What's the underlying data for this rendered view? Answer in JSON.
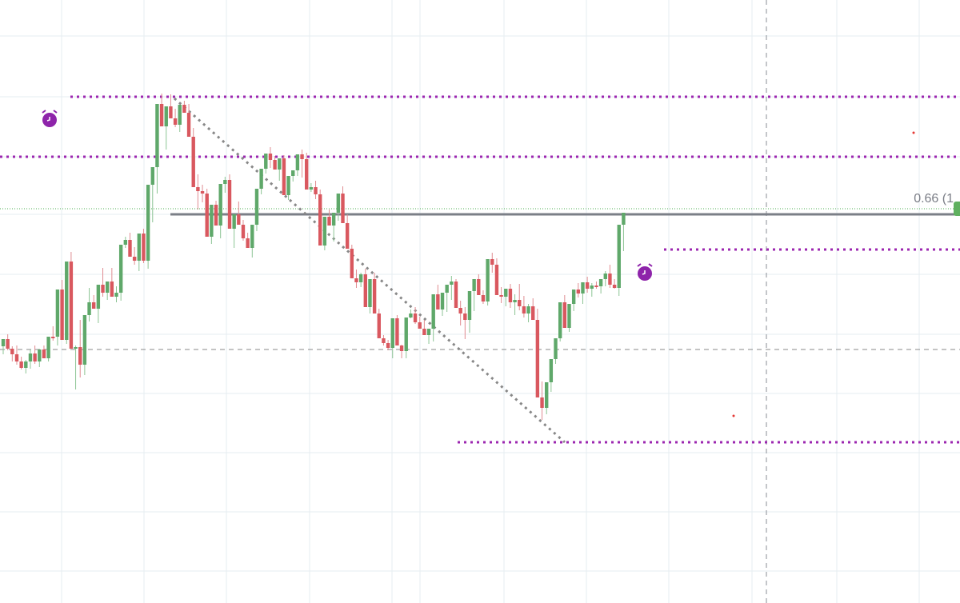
{
  "chart_data": {
    "type": "candlestick",
    "colors": {
      "up": "#5fa86a",
      "down": "#d9585f",
      "wick_up": "#8cc494",
      "wick_down": "#e08c91",
      "grid": "#e6ecf1",
      "level": "#9c27b0",
      "trend": "#888888",
      "hline": "#7b7f87",
      "crosshair": "#8a8e96",
      "dashed_ref": "#888888",
      "price_dots": "#4caf50",
      "alarm": "#8e24aa"
    },
    "ohlc": [
      [
        433,
        443,
        424,
        424
      ],
      [
        424,
        438,
        418,
        436
      ],
      [
        436,
        452,
        433,
        443
      ],
      [
        443,
        456,
        432,
        452
      ],
      [
        452,
        462,
        446,
        460
      ],
      [
        460,
        467,
        450,
        452
      ],
      [
        452,
        461,
        437,
        442
      ],
      [
        442,
        455,
        432,
        452
      ],
      [
        452,
        459,
        438,
        437
      ],
      [
        437,
        448,
        432,
        448
      ],
      [
        448,
        452,
        430,
        421
      ],
      [
        421,
        426,
        408,
        421
      ],
      [
        421,
        432,
        410,
        362
      ],
      [
        362,
        371,
        350,
        425
      ],
      [
        425,
        430,
        405,
        327
      ],
      [
        327,
        346,
        315,
        436
      ],
      [
        436,
        487,
        432,
        434
      ],
      [
        434,
        472,
        400,
        456
      ],
      [
        456,
        469,
        444,
        394
      ],
      [
        394,
        402,
        360,
        378
      ],
      [
        378,
        382,
        369,
        386
      ],
      [
        386,
        404,
        376,
        356
      ],
      [
        356,
        371,
        335,
        366
      ],
      [
        366,
        375,
        354,
        352
      ],
      [
        352,
        365,
        335,
        371
      ],
      [
        371,
        378,
        358,
        366
      ],
      [
        366,
        376,
        353,
        306
      ],
      [
        306,
        310,
        296,
        300
      ],
      [
        300,
        317,
        291,
        321
      ],
      [
        321,
        331,
        309,
        326
      ],
      [
        326,
        339,
        316,
        292
      ],
      [
        292,
        329,
        286,
        326
      ],
      [
        326,
        336,
        314,
        231
      ],
      [
        231,
        278,
        210,
        209
      ],
      [
        209,
        242,
        192,
        130
      ],
      [
        130,
        137,
        117,
        158
      ],
      [
        158,
        187,
        142,
        133
      ],
      [
        133,
        146,
        118,
        148
      ],
      [
        148,
        159,
        136,
        156
      ],
      [
        156,
        165,
        144,
        131
      ],
      [
        131,
        138,
        126,
        141
      ],
      [
        141,
        147,
        130,
        171
      ],
      [
        171,
        178,
        160,
        234
      ],
      [
        234,
        262,
        218,
        239
      ],
      [
        239,
        253,
        231,
        242
      ],
      [
        242,
        260,
        236,
        296
      ],
      [
        296,
        305,
        286,
        256
      ],
      [
        256,
        266,
        251,
        282
      ],
      [
        282,
        298,
        272,
        230
      ],
      [
        230,
        241,
        221,
        225
      ],
      [
        225,
        236,
        218,
        286
      ],
      [
        286,
        310,
        271,
        268
      ],
      [
        268,
        276,
        252,
        281
      ],
      [
        281,
        301,
        275,
        298
      ],
      [
        298,
        307,
        291,
        310
      ],
      [
        310,
        322,
        296,
        281
      ],
      [
        281,
        289,
        272,
        236
      ],
      [
        236,
        243,
        226,
        211
      ],
      [
        211,
        217,
        204,
        192
      ],
      [
        192,
        210,
        184,
        200
      ],
      [
        200,
        208,
        195,
        212
      ],
      [
        212,
        226,
        204,
        198
      ],
      [
        198,
        208,
        194,
        244
      ],
      [
        244,
        250,
        236,
        220
      ],
      [
        220,
        227,
        213,
        213
      ],
      [
        213,
        220,
        205,
        193
      ],
      [
        193,
        222,
        187,
        199
      ],
      [
        199,
        216,
        191,
        237
      ],
      [
        237,
        240,
        229,
        234
      ],
      [
        234,
        249,
        226,
        243
      ],
      [
        243,
        274,
        237,
        307
      ],
      [
        307,
        313,
        303,
        271
      ],
      [
        271,
        280,
        262,
        282
      ],
      [
        282,
        302,
        273,
        266
      ],
      [
        266,
        276,
        260,
        242
      ],
      [
        242,
        274,
        233,
        279
      ],
      [
        279,
        297,
        268,
        311
      ],
      [
        311,
        320,
        306,
        348
      ],
      [
        348,
        360,
        337,
        353
      ],
      [
        353,
        359,
        341,
        343
      ],
      [
        343,
        375,
        336,
        384
      ],
      [
        384,
        392,
        377,
        349
      ],
      [
        349,
        369,
        341,
        392
      ],
      [
        392,
        423,
        386,
        423
      ],
      [
        423,
        432,
        419,
        429
      ],
      [
        429,
        438,
        425,
        435
      ],
      [
        435,
        448,
        416,
        398
      ],
      [
        398,
        420,
        394,
        432
      ],
      [
        432,
        448,
        431,
        439
      ],
      [
        439,
        448,
        432,
        397
      ],
      [
        397,
        398,
        387,
        392
      ],
      [
        392,
        405,
        384,
        403
      ],
      [
        403,
        410,
        396,
        411
      ],
      [
        411,
        417,
        400,
        419
      ],
      [
        419,
        430,
        416,
        411
      ],
      [
        411,
        427,
        397,
        368
      ],
      [
        368,
        379,
        356,
        387
      ],
      [
        387,
        395,
        382,
        366
      ],
      [
        366,
        390,
        357,
        356
      ],
      [
        356,
        375,
        345,
        352
      ],
      [
        352,
        369,
        349,
        385
      ],
      [
        385,
        407,
        376,
        392
      ],
      [
        392,
        424,
        384,
        400
      ],
      [
        400,
        416,
        379,
        364
      ],
      [
        364,
        389,
        359,
        349
      ],
      [
        349,
        369,
        343,
        369
      ],
      [
        369,
        380,
        363,
        377
      ],
      [
        377,
        382,
        364,
        324
      ],
      [
        324,
        341,
        316,
        331
      ],
      [
        331,
        348,
        323,
        369
      ],
      [
        369,
        379,
        359,
        371
      ],
      [
        371,
        383,
        362,
        361
      ],
      [
        361,
        385,
        355,
        378
      ],
      [
        378,
        394,
        368,
        375
      ],
      [
        375,
        388,
        355,
        383
      ],
      [
        383,
        397,
        370,
        392
      ],
      [
        392,
        403,
        380,
        383
      ],
      [
        383,
        394,
        373,
        400
      ],
      [
        400,
        407,
        386,
        497
      ],
      [
        497,
        525,
        477,
        510
      ],
      [
        510,
        518,
        499,
        478
      ],
      [
        478,
        490,
        469,
        449
      ],
      [
        449,
        455,
        438,
        423
      ],
      [
        423,
        427,
        402,
        378
      ],
      [
        378,
        403,
        369,
        410
      ],
      [
        410,
        415,
        392,
        380
      ],
      [
        380,
        389,
        367,
        362
      ],
      [
        362,
        372,
        354,
        367
      ],
      [
        367,
        380,
        363,
        353
      ],
      [
        353,
        366,
        346,
        361
      ],
      [
        361,
        371,
        354,
        357
      ],
      [
        357,
        361,
        352,
        358
      ],
      [
        358,
        367,
        349,
        349
      ],
      [
        349,
        358,
        339,
        342
      ],
      [
        342,
        360,
        331,
        356
      ],
      [
        356,
        361,
        349,
        360
      ],
      [
        360,
        370,
        350,
        281
      ],
      [
        281,
        314,
        271,
        266
      ]
    ],
    "grid": true,
    "horizontal_levels_dotted": [
      121,
      196,
      312,
      553
    ],
    "horizontal_line_solid": 268,
    "current_price_dotted": 261,
    "dashed_reference": 437,
    "price_labels": {
      "level_0_66": "0.66 (1"
    },
    "alarms": [
      "alarm-1",
      "alarm-2"
    ]
  }
}
